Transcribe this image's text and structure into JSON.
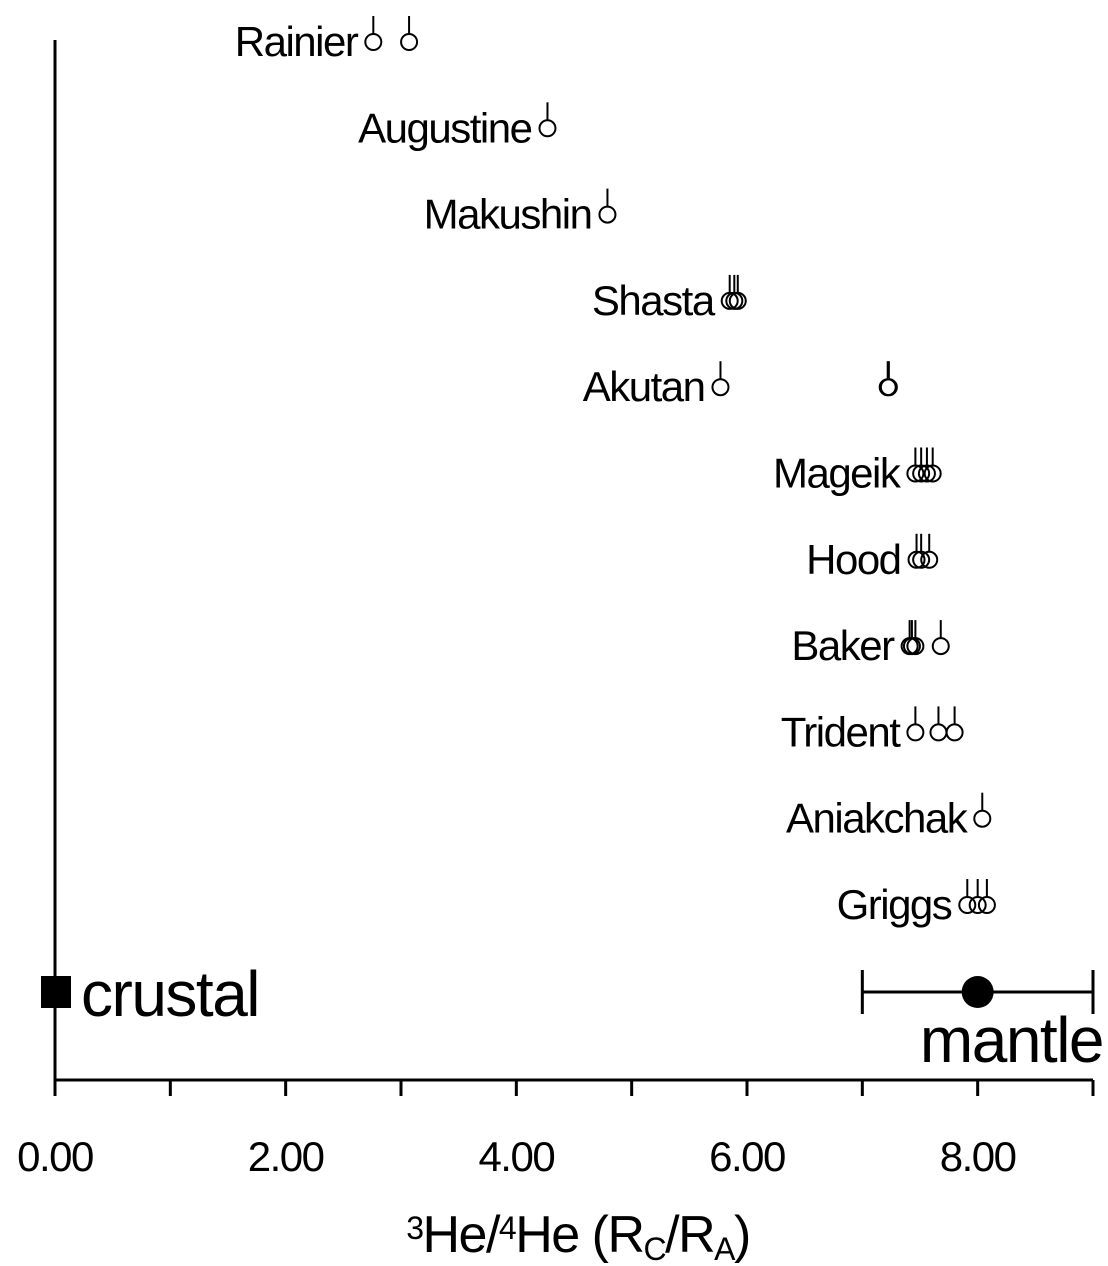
{
  "chart_data": {
    "type": "dot",
    "groups": [
      {
        "name": "Rainier",
        "values": [
          2.76,
          3.07
        ]
      },
      {
        "name": "Augustine",
        "values": [
          4.27
        ]
      },
      {
        "name": "Makushin",
        "values": [
          4.79
        ]
      },
      {
        "name": "Shasta",
        "values": [
          5.85,
          5.89,
          5.92
        ]
      },
      {
        "name": "Akutan",
        "values": [
          5.77,
          7.22,
          7.23
        ]
      },
      {
        "name": "Mageik",
        "values": [
          7.46,
          7.51,
          7.56,
          7.61
        ]
      },
      {
        "name": "Hood",
        "values": [
          7.47,
          7.51,
          7.58
        ]
      },
      {
        "name": "Baker",
        "values": [
          7.41,
          7.43,
          7.46,
          7.68
        ]
      },
      {
        "name": "Trident",
        "values": [
          7.46,
          7.66,
          7.8
        ]
      },
      {
        "name": "Aniakchak",
        "values": [
          8.04
        ]
      },
      {
        "name": "Griggs",
        "values": [
          7.91,
          8.0,
          8.08
        ]
      }
    ],
    "references": [
      {
        "name": "crustal",
        "value": 0,
        "marker": "square"
      },
      {
        "name": "mantle",
        "value": 8,
        "error": 1,
        "marker": "circle"
      }
    ],
    "xlim": [
      0,
      9
    ],
    "xticks": [
      {
        "value": 0,
        "label": "0.00"
      },
      {
        "value": 2,
        "label": "2.00"
      },
      {
        "value": 4,
        "label": "4.00"
      },
      {
        "value": 6,
        "label": "6.00"
      },
      {
        "value": 8,
        "label": "8.00"
      }
    ],
    "xminor_ticks": [
      1,
      3,
      5,
      7,
      9
    ],
    "xlabel": [
      {
        "text": "3",
        "shift": "super"
      },
      {
        "text": "He/"
      },
      {
        "text": "4",
        "shift": "super"
      },
      {
        "text": "He (R"
      },
      {
        "text": "C",
        "shift": "sub"
      },
      {
        "text": "/R"
      },
      {
        "text": "A",
        "shift": "sub"
      },
      {
        "text": ")"
      }
    ],
    "color": "#000000"
  }
}
